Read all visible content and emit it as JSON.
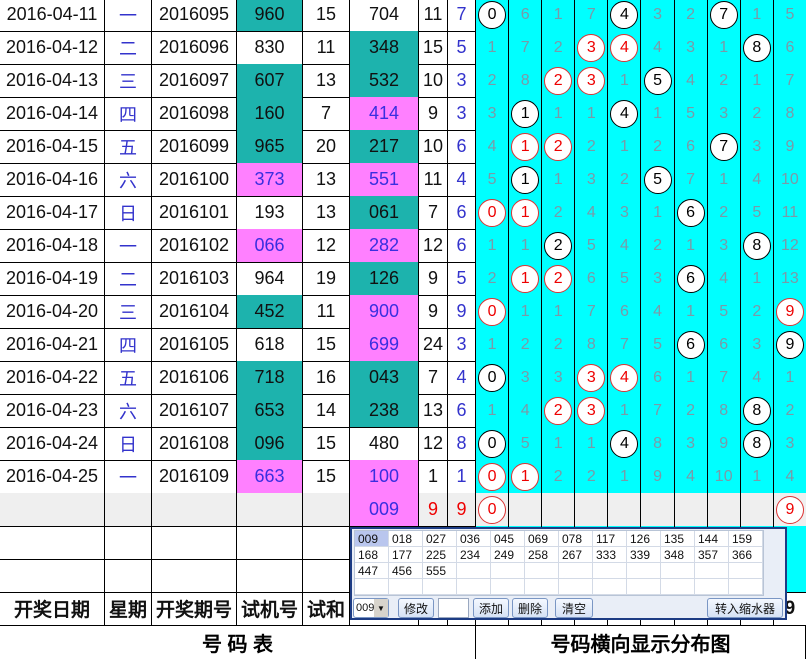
{
  "colors": {
    "teal": "#1db3ad",
    "pink": "#ff80ff",
    "cyan": "#00ffff"
  },
  "rows": [
    {
      "date": "2016-04-11",
      "week": "一",
      "period": "2016095",
      "trial": "960",
      "trial_color": "teal",
      "sum": "15",
      "number": "704",
      "number_color": "white",
      "num_sum": "11",
      "span": "7",
      "dist": [
        [
          "0",
          "b"
        ],
        [
          "6",
          ""
        ],
        [
          "1",
          ""
        ],
        [
          "7",
          ""
        ],
        [
          "4",
          "b"
        ],
        [
          "3",
          ""
        ],
        [
          "2",
          ""
        ],
        [
          "7",
          "b"
        ],
        [
          "1",
          ""
        ],
        [
          "5",
          ""
        ]
      ]
    },
    {
      "date": "2016-04-12",
      "week": "二",
      "period": "2016096",
      "trial": "830",
      "trial_color": "white",
      "sum": "11",
      "number": "348",
      "number_color": "teal",
      "num_sum": "15",
      "span": "5",
      "dist": [
        [
          "1",
          ""
        ],
        [
          "7",
          ""
        ],
        [
          "2",
          ""
        ],
        [
          "3",
          "r"
        ],
        [
          "4",
          "r"
        ],
        [
          "4",
          ""
        ],
        [
          "3",
          ""
        ],
        [
          "1",
          ""
        ],
        [
          "8",
          "b"
        ],
        [
          "6",
          ""
        ]
      ]
    },
    {
      "date": "2016-04-13",
      "week": "三",
      "period": "2016097",
      "trial": "607",
      "trial_color": "teal",
      "sum": "13",
      "number": "532",
      "number_color": "teal",
      "num_sum": "10",
      "span": "3",
      "dist": [
        [
          "2",
          ""
        ],
        [
          "8",
          ""
        ],
        [
          "2",
          "r"
        ],
        [
          "3",
          "r"
        ],
        [
          "1",
          ""
        ],
        [
          "5",
          "b"
        ],
        [
          "4",
          ""
        ],
        [
          "2",
          ""
        ],
        [
          "1",
          ""
        ],
        [
          "7",
          ""
        ]
      ]
    },
    {
      "date": "2016-04-14",
      "week": "四",
      "period": "2016098",
      "trial": "160",
      "trial_color": "teal",
      "sum": "7",
      "number": "414",
      "number_color": "pink",
      "num_sum": "9",
      "span": "3",
      "dist": [
        [
          "3",
          ""
        ],
        [
          "1",
          "b"
        ],
        [
          "1",
          ""
        ],
        [
          "1",
          ""
        ],
        [
          "4",
          "b"
        ],
        [
          "1",
          ""
        ],
        [
          "5",
          ""
        ],
        [
          "3",
          ""
        ],
        [
          "2",
          ""
        ],
        [
          "8",
          ""
        ]
      ]
    },
    {
      "date": "2016-04-15",
      "week": "五",
      "period": "2016099",
      "trial": "965",
      "trial_color": "teal",
      "sum": "20",
      "number": "217",
      "number_color": "teal",
      "num_sum": "10",
      "span": "6",
      "dist": [
        [
          "4",
          ""
        ],
        [
          "1",
          "r"
        ],
        [
          "2",
          "r"
        ],
        [
          "2",
          ""
        ],
        [
          "1",
          ""
        ],
        [
          "2",
          ""
        ],
        [
          "6",
          ""
        ],
        [
          "7",
          "b"
        ],
        [
          "3",
          ""
        ],
        [
          "9",
          ""
        ]
      ]
    },
    {
      "date": "2016-04-16",
      "week": "六",
      "period": "2016100",
      "trial": "373",
      "trial_color": "pink",
      "sum": "13",
      "number": "551",
      "number_color": "pink",
      "num_sum": "11",
      "span": "4",
      "dist": [
        [
          "5",
          ""
        ],
        [
          "1",
          "b"
        ],
        [
          "1",
          ""
        ],
        [
          "3",
          ""
        ],
        [
          "2",
          ""
        ],
        [
          "5",
          "b"
        ],
        [
          "7",
          ""
        ],
        [
          "1",
          ""
        ],
        [
          "4",
          ""
        ],
        [
          "10",
          ""
        ]
      ]
    },
    {
      "date": "2016-04-17",
      "week": "日",
      "period": "2016101",
      "trial": "193",
      "trial_color": "white",
      "sum": "13",
      "number": "061",
      "number_color": "teal",
      "num_sum": "7",
      "span": "6",
      "dist": [
        [
          "0",
          "r"
        ],
        [
          "1",
          "r"
        ],
        [
          "2",
          ""
        ],
        [
          "4",
          ""
        ],
        [
          "3",
          ""
        ],
        [
          "1",
          ""
        ],
        [
          "6",
          "b"
        ],
        [
          "2",
          ""
        ],
        [
          "5",
          ""
        ],
        [
          "11",
          ""
        ]
      ]
    },
    {
      "date": "2016-04-18",
      "week": "一",
      "period": "2016102",
      "trial": "066",
      "trial_color": "pink",
      "sum": "12",
      "number": "282",
      "number_color": "pink",
      "num_sum": "12",
      "span": "6",
      "dist": [
        [
          "1",
          ""
        ],
        [
          "1",
          ""
        ],
        [
          "2",
          "b"
        ],
        [
          "5",
          ""
        ],
        [
          "4",
          ""
        ],
        [
          "2",
          ""
        ],
        [
          "1",
          ""
        ],
        [
          "3",
          ""
        ],
        [
          "8",
          "b"
        ],
        [
          "12",
          ""
        ]
      ]
    },
    {
      "date": "2016-04-19",
      "week": "二",
      "period": "2016103",
      "trial": "964",
      "trial_color": "white",
      "sum": "19",
      "number": "126",
      "number_color": "teal",
      "num_sum": "9",
      "span": "5",
      "dist": [
        [
          "2",
          ""
        ],
        [
          "1",
          "r"
        ],
        [
          "2",
          "r"
        ],
        [
          "6",
          ""
        ],
        [
          "5",
          ""
        ],
        [
          "3",
          ""
        ],
        [
          "6",
          "b"
        ],
        [
          "4",
          ""
        ],
        [
          "1",
          ""
        ],
        [
          "13",
          ""
        ]
      ]
    },
    {
      "date": "2016-04-20",
      "week": "三",
      "period": "2016104",
      "trial": "452",
      "trial_color": "teal",
      "sum": "11",
      "number": "900",
      "number_color": "pink",
      "num_sum": "9",
      "span": "9",
      "dist": [
        [
          "0",
          "r"
        ],
        [
          "1",
          ""
        ],
        [
          "1",
          ""
        ],
        [
          "7",
          ""
        ],
        [
          "6",
          ""
        ],
        [
          "4",
          ""
        ],
        [
          "1",
          ""
        ],
        [
          "5",
          ""
        ],
        [
          "2",
          ""
        ],
        [
          "9",
          "r"
        ]
      ]
    },
    {
      "date": "2016-04-21",
      "week": "四",
      "period": "2016105",
      "trial": "618",
      "trial_color": "white",
      "sum": "15",
      "number": "699",
      "number_color": "pink",
      "num_sum": "24",
      "span": "3",
      "dist": [
        [
          "1",
          ""
        ],
        [
          "2",
          ""
        ],
        [
          "2",
          ""
        ],
        [
          "8",
          ""
        ],
        [
          "7",
          ""
        ],
        [
          "5",
          ""
        ],
        [
          "6",
          "b"
        ],
        [
          "6",
          ""
        ],
        [
          "3",
          ""
        ],
        [
          "9",
          "b"
        ]
      ]
    },
    {
      "date": "2016-04-22",
      "week": "五",
      "period": "2016106",
      "trial": "718",
      "trial_color": "teal",
      "sum": "16",
      "number": "043",
      "number_color": "teal",
      "num_sum": "7",
      "span": "4",
      "dist": [
        [
          "0",
          "b"
        ],
        [
          "3",
          ""
        ],
        [
          "3",
          ""
        ],
        [
          "3",
          "r"
        ],
        [
          "4",
          "r"
        ],
        [
          "6",
          ""
        ],
        [
          "1",
          ""
        ],
        [
          "7",
          ""
        ],
        [
          "4",
          ""
        ],
        [
          "1",
          ""
        ]
      ]
    },
    {
      "date": "2016-04-23",
      "week": "六",
      "period": "2016107",
      "trial": "653",
      "trial_color": "teal",
      "sum": "14",
      "number": "238",
      "number_color": "teal",
      "num_sum": "13",
      "span": "6",
      "dist": [
        [
          "1",
          ""
        ],
        [
          "4",
          ""
        ],
        [
          "2",
          "r"
        ],
        [
          "3",
          "r"
        ],
        [
          "1",
          ""
        ],
        [
          "7",
          ""
        ],
        [
          "2",
          ""
        ],
        [
          "8",
          ""
        ],
        [
          "8",
          "b"
        ],
        [
          "2",
          ""
        ]
      ]
    },
    {
      "date": "2016-04-24",
      "week": "日",
      "period": "2016108",
      "trial": "096",
      "trial_color": "teal",
      "sum": "15",
      "number": "480",
      "number_color": "white",
      "num_sum": "12",
      "span": "8",
      "dist": [
        [
          "0",
          "b"
        ],
        [
          "5",
          ""
        ],
        [
          "1",
          ""
        ],
        [
          "1",
          ""
        ],
        [
          "4",
          "b"
        ],
        [
          "8",
          ""
        ],
        [
          "3",
          ""
        ],
        [
          "9",
          ""
        ],
        [
          "8",
          "b"
        ],
        [
          "3",
          ""
        ]
      ]
    },
    {
      "date": "2016-04-25",
      "week": "一",
      "period": "2016109",
      "trial": "663",
      "trial_color": "pink",
      "sum": "15",
      "number": "100",
      "number_color": "pink",
      "num_sum": "1",
      "span": "1",
      "dist": [
        [
          "0",
          "r"
        ],
        [
          "1",
          "r"
        ],
        [
          "2",
          ""
        ],
        [
          "2",
          ""
        ],
        [
          "1",
          ""
        ],
        [
          "9",
          ""
        ],
        [
          "4",
          ""
        ],
        [
          "10",
          ""
        ],
        [
          "1",
          ""
        ],
        [
          "4",
          ""
        ]
      ]
    }
  ],
  "next_row": {
    "number": "009",
    "num_sum": "9",
    "span": "9",
    "dist": [
      [
        "0",
        "r"
      ],
      [
        "",
        ""
      ],
      [
        "",
        ""
      ],
      [
        "",
        ""
      ],
      [
        "",
        ""
      ],
      [
        "",
        ""
      ],
      [
        "",
        ""
      ],
      [
        "",
        ""
      ],
      [
        "",
        ""
      ],
      [
        "9",
        "r"
      ]
    ]
  },
  "header": {
    "date": "开奖日期",
    "week": "星期",
    "period": "开奖期号",
    "trial": "试机号",
    "sum": "试和",
    "dist_last": "9"
  },
  "footer": {
    "left_title": "号 码 表",
    "right_title": "号码横向显示分布图"
  },
  "popup": {
    "numbers": [
      "009",
      "018",
      "027",
      "036",
      "045",
      "069",
      "078",
      "117",
      "126",
      "135",
      "144",
      "159",
      "168",
      "177",
      "225",
      "234",
      "249",
      "258",
      "267",
      "333",
      "339",
      "348",
      "357",
      "366",
      "447",
      "456",
      "555"
    ],
    "selected": "009",
    "dropdown_value": "009",
    "modify_label": "修改",
    "input_value": "",
    "add_label": "添加",
    "delete_label": "删除",
    "clear_label": "清空",
    "transfer_label": "转入缩水器"
  }
}
